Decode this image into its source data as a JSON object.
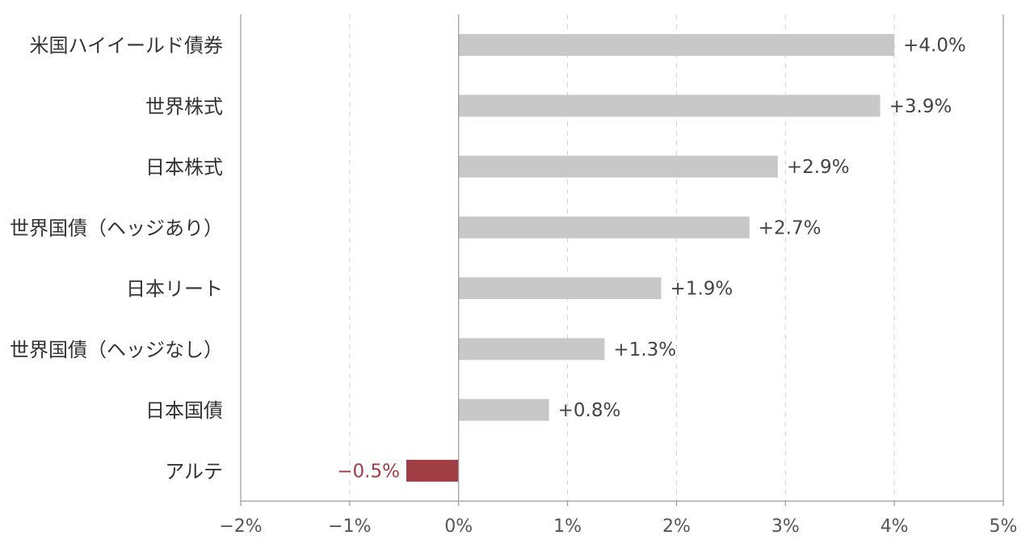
{
  "chart_data": {
    "type": "bar",
    "orientation": "horizontal",
    "categories": [
      "米国ハイイールド債券",
      "世界株式",
      "日本株式",
      "世界国債（ヘッジあり）",
      "日本リート",
      "世界国債（ヘッジなし）",
      "日本国債",
      "アルテ"
    ],
    "values": [
      4.0,
      3.87,
      2.93,
      2.67,
      1.86,
      1.34,
      0.83,
      -0.48
    ],
    "data_labels": [
      "+4.0%",
      "+3.9%",
      "+2.9%",
      "+2.7%",
      "+1.9%",
      "+1.3%",
      "+0.8%",
      "−0.5%"
    ],
    "xlim": [
      -2,
      5
    ],
    "xticks": [
      -2,
      -1,
      0,
      1,
      2,
      3,
      4,
      5
    ],
    "xtick_labels": [
      "−2%",
      "−1%",
      "0%",
      "1%",
      "2%",
      "3%",
      "4%",
      "5%"
    ],
    "grid": "vertical-dashed",
    "colors": {
      "positive_bar": "#c8c8c8",
      "negative_bar": "#a13d45",
      "positive_label": "#444444",
      "negative_label": "#a13d45",
      "axis": "#999999",
      "grid": "#d8d8d8"
    }
  }
}
